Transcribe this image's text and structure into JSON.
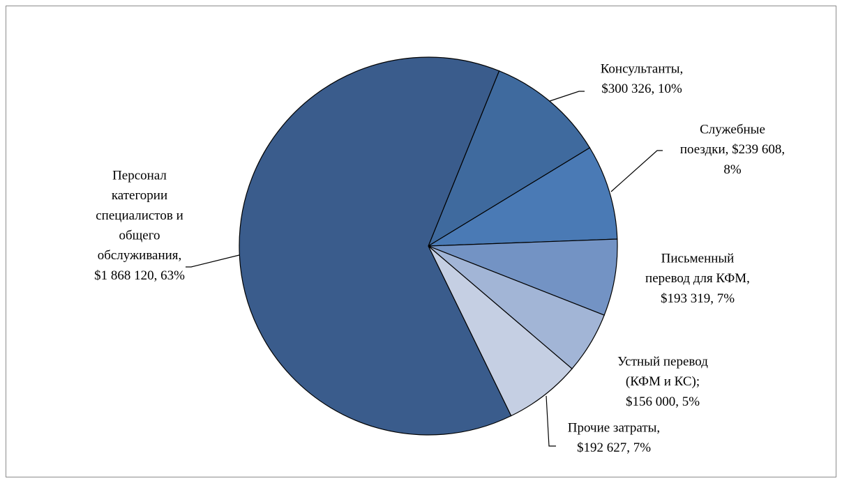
{
  "chart_data": {
    "type": "pie",
    "values": [
      300326,
      239608,
      193319,
      156000,
      192627,
      1868120
    ],
    "value_labels": [
      [
        "Консультанты,",
        "$300 326, 10%"
      ],
      [
        "Служебные",
        "поездки,  $239 608,",
        "8%"
      ],
      [
        "Письменный",
        "перевод для КФМ,",
        "$193 319, 7%"
      ],
      [
        "Устный перевод",
        "(КФМ и КС);",
        "$156 000, 5%"
      ],
      [
        "Прочие затраты,",
        "$192 627, 7%"
      ],
      [
        "Персонал",
        "категории",
        "специалистов и",
        "общего",
        "обслуживания,",
        "$1 868 120, 63%"
      ]
    ],
    "colors": [
      "#3f6a9e",
      "#4a7ab5",
      "#7393c4",
      "#a2b5d6",
      "#c5cfe3",
      "#3a5c8c"
    ]
  }
}
